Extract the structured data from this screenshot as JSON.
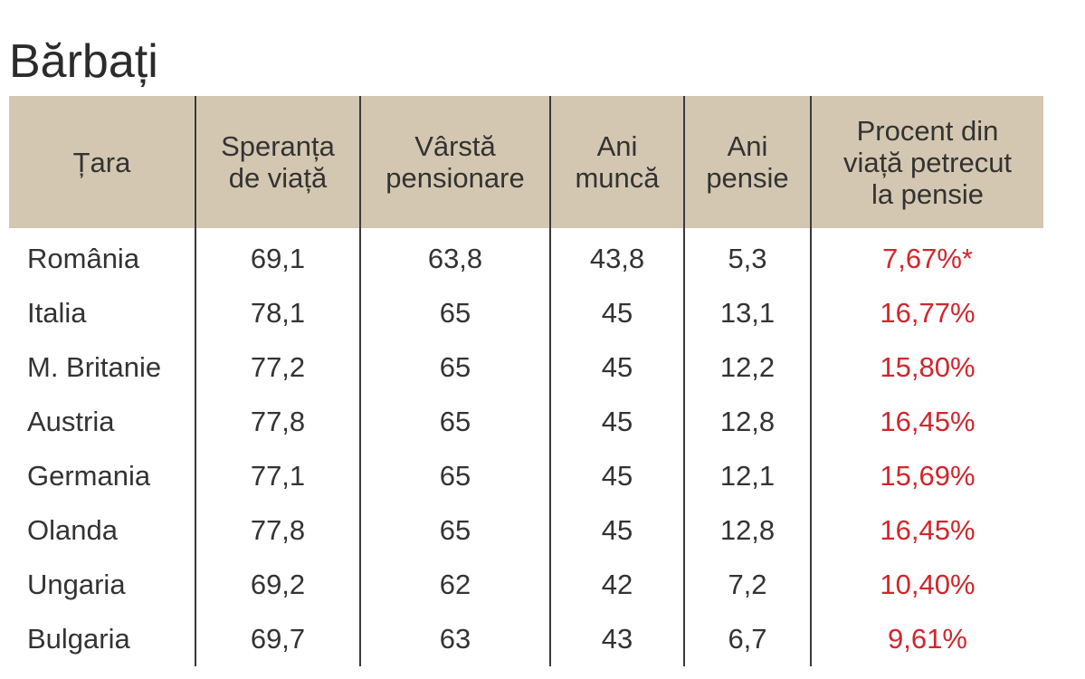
{
  "title": "Bărbați",
  "headers": [
    "Țara",
    "Speranța\nde viață",
    "Vârstă\npensionare",
    "Ani\nmuncă",
    "Ani\npensie",
    "Procent din\nviață petrecut\nla pensie"
  ],
  "rows": [
    {
      "tara": "România",
      "speranta": "69,1",
      "varsta": "63,8",
      "munca": "43,8",
      "pensie": "5,3",
      "procent": "7,67%*"
    },
    {
      "tara": "Italia",
      "speranta": "78,1",
      "varsta": "65",
      "munca": "45",
      "pensie": "13,1",
      "procent": "16,77%"
    },
    {
      "tara": "M. Britanie",
      "speranta": "77,2",
      "varsta": "65",
      "munca": "45",
      "pensie": "12,2",
      "procent": "15,80%"
    },
    {
      "tara": "Austria",
      "speranta": "77,8",
      "varsta": "65",
      "munca": "45",
      "pensie": "12,8",
      "procent": "16,45%"
    },
    {
      "tara": "Germania",
      "speranta": "77,1",
      "varsta": "65",
      "munca": "45",
      "pensie": "12,1",
      "procent": "15,69%"
    },
    {
      "tara": "Olanda",
      "speranta": "77,8",
      "varsta": "65",
      "munca": "45",
      "pensie": "12,8",
      "procent": "16,45%"
    },
    {
      "tara": "Ungaria",
      "speranta": "69,2",
      "varsta": "62",
      "munca": "42",
      "pensie": "7,2",
      "procent": "10,40%"
    },
    {
      "tara": "Bulgaria",
      "speranta": "69,7",
      "varsta": "63",
      "munca": "43",
      "pensie": "6,7",
      "procent": "9,61%"
    }
  ],
  "colors": {
    "header_bg": "#d4c7b1",
    "percent_text": "#d0262c",
    "text": "#333333",
    "divider": "#3a3a3a"
  }
}
